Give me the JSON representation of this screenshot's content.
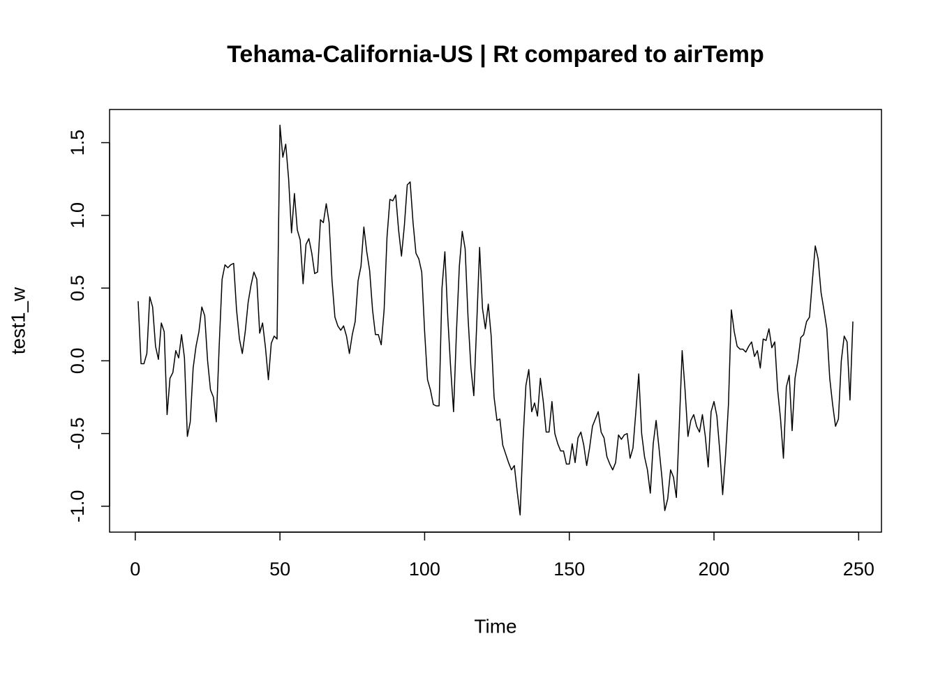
{
  "chart_data": {
    "type": "line",
    "title": "Tehama-California-US | Rt compared to airTemp",
    "x_label": "Time",
    "y_label": "test1_w",
    "xlim": [
      -8.88,
      257.88
    ],
    "ylim": [
      -1.178,
      1.728
    ],
    "xticks": [
      0,
      50,
      100,
      150,
      200,
      250
    ],
    "yticks": [
      {
        "value": -1,
        "label": "-1.0"
      },
      {
        "value": -0.5,
        "label": "-0.5"
      },
      {
        "value": 0,
        "label": "0.0"
      },
      {
        "value": 0.5,
        "label": "0.5"
      },
      {
        "value": 1,
        "label": "1.0"
      },
      {
        "value": 1.5,
        "label": "1.5"
      }
    ],
    "series": [
      {
        "color": "#000000",
        "x": [
          1,
          2,
          3,
          4,
          5,
          6,
          7,
          8,
          9,
          10,
          11,
          12,
          13,
          14,
          15,
          16,
          17,
          18,
          19,
          20,
          21,
          22,
          23,
          24,
          25,
          26,
          27,
          28,
          29,
          30,
          31,
          32,
          33,
          34,
          35,
          36,
          37,
          38,
          39,
          40,
          41,
          42,
          43,
          44,
          45,
          46,
          47,
          48,
          49,
          50,
          51,
          52,
          53,
          54,
          55,
          56,
          57,
          58,
          59,
          60,
          61,
          62,
          63,
          64,
          65,
          66,
          67,
          68,
          69,
          70,
          71,
          72,
          73,
          74,
          75,
          76,
          77,
          78,
          79,
          80,
          81,
          82,
          83,
          84,
          85,
          86,
          87,
          88,
          89,
          90,
          91,
          92,
          93,
          94,
          95,
          96,
          97,
          98,
          99,
          100,
          101,
          102,
          103,
          104,
          105,
          106,
          107,
          108,
          109,
          110,
          111,
          112,
          113,
          114,
          115,
          116,
          117,
          118,
          119,
          120,
          121,
          122,
          123,
          124,
          125,
          126,
          127,
          128,
          129,
          130,
          131,
          132,
          133,
          134,
          135,
          136,
          137,
          138,
          139,
          140,
          141,
          142,
          143,
          144,
          145,
          146,
          147,
          148,
          149,
          150,
          151,
          152,
          153,
          154,
          155,
          156,
          157,
          158,
          159,
          160,
          161,
          162,
          163,
          164,
          165,
          166,
          167,
          168,
          169,
          170,
          171,
          172,
          173,
          174,
          175,
          176,
          177,
          178,
          179,
          180,
          181,
          182,
          183,
          184,
          185,
          186,
          187,
          188,
          189,
          190,
          191,
          192,
          193,
          194,
          195,
          196,
          197,
          198,
          199,
          200,
          201,
          202,
          203,
          204,
          205,
          206,
          207,
          208,
          209,
          210,
          211,
          212,
          213,
          214,
          215,
          216,
          217,
          218,
          219,
          220,
          221,
          222,
          223,
          224,
          225,
          226,
          227,
          228,
          229,
          230,
          231,
          232,
          233,
          234,
          235,
          236,
          237,
          238,
          239,
          240,
          241,
          242,
          243,
          244,
          245,
          246,
          247,
          248
        ],
        "values": [
          0.41,
          -0.02,
          -0.02,
          0.05,
          0.44,
          0.37,
          0.1,
          0.01,
          0.26,
          0.2,
          -0.37,
          -0.12,
          -0.08,
          0.07,
          0.02,
          0.18,
          0.02,
          -0.52,
          -0.42,
          -0.05,
          0.1,
          0.2,
          0.37,
          0.31,
          0.0,
          -0.2,
          -0.25,
          -0.42,
          0.1,
          0.56,
          0.66,
          0.64,
          0.66,
          0.67,
          0.35,
          0.15,
          0.05,
          0.2,
          0.4,
          0.52,
          0.61,
          0.56,
          0.19,
          0.26,
          0.09,
          -0.13,
          0.12,
          0.17,
          0.15,
          1.62,
          1.4,
          1.49,
          1.25,
          0.88,
          1.15,
          0.9,
          0.83,
          0.53,
          0.8,
          0.84,
          0.74,
          0.6,
          0.61,
          0.97,
          0.95,
          1.08,
          0.95,
          0.55,
          0.3,
          0.24,
          0.21,
          0.24,
          0.17,
          0.05,
          0.18,
          0.27,
          0.55,
          0.65,
          0.92,
          0.75,
          0.62,
          0.35,
          0.18,
          0.18,
          0.11,
          0.35,
          0.85,
          1.11,
          1.1,
          1.14,
          0.9,
          0.72,
          0.93,
          1.21,
          1.23,
          0.95,
          0.74,
          0.7,
          0.61,
          0.2,
          -0.13,
          -0.2,
          -0.3,
          -0.31,
          -0.31,
          0.5,
          0.75,
          0.3,
          -0.05,
          -0.35,
          0.2,
          0.65,
          0.89,
          0.77,
          0.3,
          -0.05,
          -0.24,
          0.25,
          0.78,
          0.36,
          0.22,
          0.39,
          0.17,
          -0.25,
          -0.41,
          -0.4,
          -0.58,
          -0.64,
          -0.7,
          -0.75,
          -0.72,
          -0.9,
          -1.06,
          -0.55,
          -0.17,
          -0.06,
          -0.35,
          -0.29,
          -0.38,
          -0.12,
          -0.28,
          -0.49,
          -0.49,
          -0.28,
          -0.5,
          -0.57,
          -0.62,
          -0.62,
          -0.71,
          -0.71,
          -0.57,
          -0.7,
          -0.53,
          -0.49,
          -0.58,
          -0.72,
          -0.6,
          -0.45,
          -0.4,
          -0.35,
          -0.49,
          -0.53,
          -0.66,
          -0.71,
          -0.75,
          -0.7,
          -0.51,
          -0.54,
          -0.51,
          -0.5,
          -0.67,
          -0.6,
          -0.35,
          -0.09,
          -0.5,
          -0.66,
          -0.75,
          -0.91,
          -0.57,
          -0.41,
          -0.6,
          -0.8,
          -1.03,
          -0.95,
          -0.75,
          -0.8,
          -0.94,
          -0.45,
          0.07,
          -0.2,
          -0.52,
          -0.41,
          -0.37,
          -0.45,
          -0.49,
          -0.37,
          -0.52,
          -0.73,
          -0.35,
          -0.28,
          -0.38,
          -0.62,
          -0.92,
          -0.65,
          -0.3,
          0.35,
          0.2,
          0.1,
          0.08,
          0.08,
          0.06,
          0.1,
          0.13,
          0.03,
          0.07,
          -0.05,
          0.15,
          0.14,
          0.22,
          0.09,
          0.13,
          -0.2,
          -0.4,
          -0.67,
          -0.18,
          -0.1,
          -0.48,
          -0.12,
          0.0,
          0.16,
          0.18,
          0.27,
          0.3,
          0.55,
          0.79,
          0.7,
          0.47,
          0.35,
          0.22,
          -0.12,
          -0.3,
          -0.45,
          -0.4,
          0.0,
          0.17,
          0.13,
          -0.27,
          0.27
        ]
      }
    ]
  }
}
